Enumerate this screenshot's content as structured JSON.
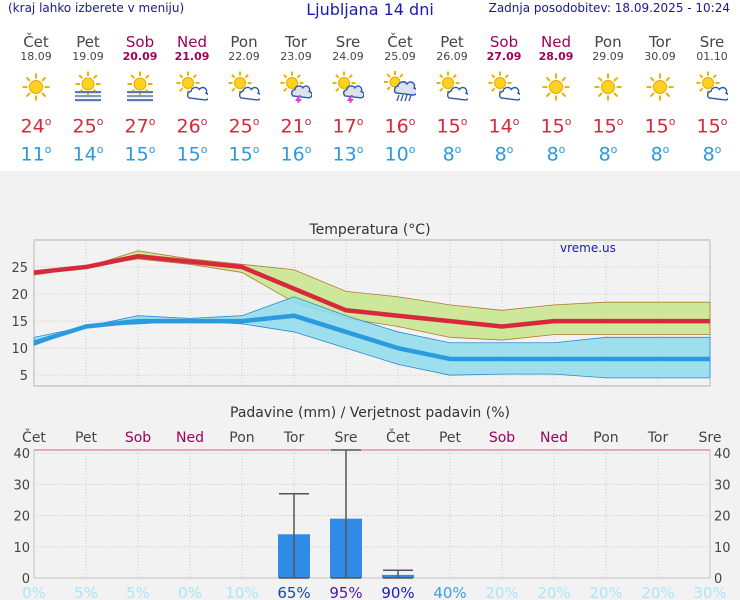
{
  "header": {
    "left_note": "(kraj lahko izberete v meniju)",
    "title": "Ljubljana 14 dni",
    "updated": "Zadnja posodobitev: 18.09.2025 - 10:24"
  },
  "days": [
    {
      "name": "Čet",
      "date": "18.09",
      "weekend": false,
      "icon": "sunny-icon",
      "max": "24",
      "min": "11"
    },
    {
      "name": "Pet",
      "date": "19.09",
      "weekend": false,
      "icon": "sun-fog-icon",
      "max": "25",
      "min": "14"
    },
    {
      "name": "Sob",
      "date": "20.09",
      "weekend": true,
      "icon": "sun-fog-icon",
      "max": "27",
      "min": "15"
    },
    {
      "name": "Ned",
      "date": "21.09",
      "weekend": true,
      "icon": "partly-cloudy-icon",
      "max": "26",
      "min": "15"
    },
    {
      "name": "Pon",
      "date": "22.09",
      "weekend": false,
      "icon": "partly-cloudy-icon",
      "max": "25",
      "min": "15"
    },
    {
      "name": "Tor",
      "date": "23.09",
      "weekend": false,
      "icon": "sun-thunder-icon",
      "max": "21",
      "min": "16"
    },
    {
      "name": "Sre",
      "date": "24.09",
      "weekend": false,
      "icon": "sun-thunder-icon",
      "max": "17",
      "min": "13"
    },
    {
      "name": "Čet",
      "date": "25.09",
      "weekend": false,
      "icon": "sun-cloud-rain-icon",
      "max": "16",
      "min": "10"
    },
    {
      "name": "Pet",
      "date": "26.09",
      "weekend": false,
      "icon": "partly-cloudy-icon",
      "max": "15",
      "min": "8"
    },
    {
      "name": "Sob",
      "date": "27.09",
      "weekend": true,
      "icon": "partly-cloudy-icon",
      "max": "14",
      "min": "8"
    },
    {
      "name": "Ned",
      "date": "28.09",
      "weekend": true,
      "icon": "sunny-icon",
      "max": "15",
      "min": "8"
    },
    {
      "name": "Pon",
      "date": "29.09",
      "weekend": false,
      "icon": "sunny-icon",
      "max": "15",
      "min": "8"
    },
    {
      "name": "Tor",
      "date": "30.09",
      "weekend": false,
      "icon": "sunny-icon",
      "max": "15",
      "min": "8"
    },
    {
      "name": "Sre",
      "date": "01.10",
      "weekend": false,
      "icon": "partly-cloudy-icon",
      "max": "15",
      "min": "8"
    }
  ],
  "degree_symbol": "o",
  "colors": {
    "max_temp": "#d8283c",
    "min_temp": "#2a9be0",
    "max_band": "#c8e68c",
    "min_band": "#8fdcec",
    "bar": "#2f8be6",
    "weekend": "#a0005a"
  },
  "chart_data": [
    {
      "type": "line",
      "title": "Temperatura (°C)",
      "watermark": "vreme.us",
      "categories": [
        "Čet",
        "Pet",
        "Sob",
        "Ned",
        "Pon",
        "Tor",
        "Sre",
        "Čet",
        "Pet",
        "Sob",
        "Ned",
        "Pon",
        "Tor",
        "Sre"
      ],
      "ylim": [
        3,
        30
      ],
      "yticks": [
        5,
        10,
        15,
        20,
        25
      ],
      "series": [
        {
          "values": [
            24,
            25,
            27,
            26,
            25,
            21,
            17,
            16,
            15,
            14,
            15,
            15,
            15,
            15
          ]
        },
        {
          "values": [
            11,
            14,
            15,
            15,
            15,
            16,
            13,
            10,
            8,
            8,
            8,
            8,
            8,
            8
          ]
        }
      ],
      "bands": [
        {
          "upper": [
            24,
            25,
            28,
            26.5,
            25.5,
            24.5,
            20.5,
            19.5,
            18,
            17,
            18,
            18.5,
            18.5,
            18.5
          ],
          "lower": [
            23.5,
            25,
            26.5,
            25.5,
            24,
            18.5,
            15.5,
            14,
            12,
            11.5,
            12.5,
            12.5,
            12.5,
            12.5
          ]
        },
        {
          "upper": [
            12,
            14,
            16,
            15.5,
            16,
            19.5,
            16,
            13,
            11,
            11,
            11,
            12,
            12,
            12
          ],
          "lower": [
            10.5,
            14,
            14.5,
            15,
            14.5,
            13,
            10,
            7,
            5,
            5.2,
            5.2,
            4.5,
            4.5,
            4.5
          ]
        }
      ],
      "grid": true
    },
    {
      "type": "bar",
      "title": "Padavine (mm) / Verjetnost padavin (%)",
      "categories": [
        "Čet",
        "Pet",
        "Sob",
        "Ned",
        "Pon",
        "Tor",
        "Sre",
        "Čet",
        "Pet",
        "Sob",
        "Ned",
        "Pon",
        "Tor",
        "Sre"
      ],
      "weekend": [
        false,
        false,
        true,
        true,
        false,
        false,
        false,
        false,
        false,
        true,
        true,
        false,
        false,
        false
      ],
      "ylim": [
        0,
        41
      ],
      "yticks": [
        0,
        10,
        20,
        30,
        40
      ],
      "values": [
        0,
        0,
        0,
        0,
        0,
        14,
        19,
        1,
        0,
        0,
        0,
        0,
        0,
        0
      ],
      "error_high": [
        0,
        0,
        0,
        0,
        0,
        27,
        41,
        2.5,
        0,
        0,
        0,
        0,
        0,
        0
      ],
      "probability": [
        "0%",
        "5%",
        "5%",
        "0%",
        "10%",
        "65%",
        "95%",
        "90%",
        "40%",
        "20%",
        "20%",
        "20%",
        "20%",
        "30%"
      ],
      "probability_colors": [
        "#a8e6f8",
        "#a8e6f8",
        "#a8e6f8",
        "#a8e6f8",
        "#a8e6f8",
        "#1a4aa0",
        "#4a1aa8",
        "#2020b0",
        "#3aa0e0",
        "#a8e6f8",
        "#a8e6f8",
        "#a8e6f8",
        "#a8e6f8",
        "#a8e6f8"
      ]
    }
  ]
}
